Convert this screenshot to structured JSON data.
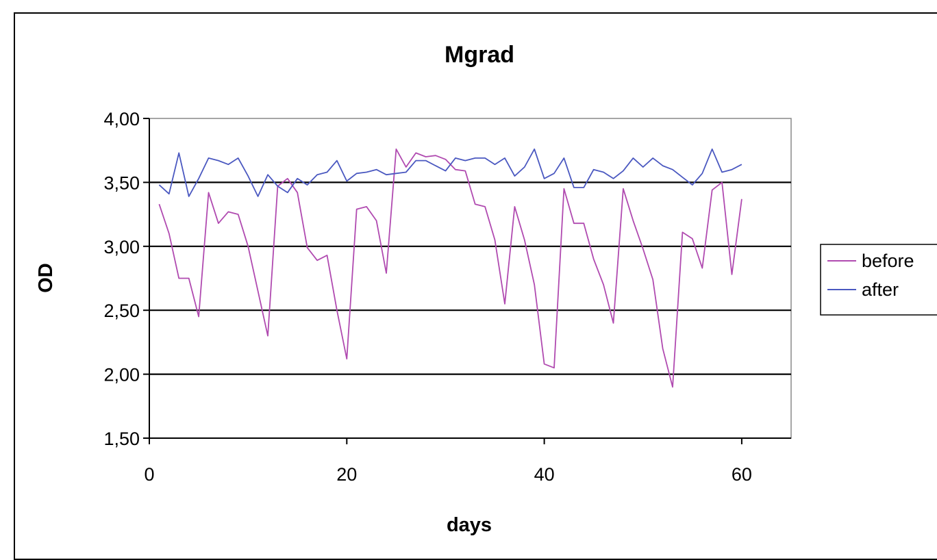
{
  "chart_data": {
    "type": "line",
    "title": "Mgrad",
    "xlabel": "days",
    "ylabel": "OD",
    "xlim": [
      0,
      65
    ],
    "ylim": [
      1.5,
      4.0
    ],
    "x_ticks": [
      0,
      20,
      40,
      60
    ],
    "y_ticks": [
      1.5,
      2.0,
      2.5,
      3.0,
      3.5,
      4.0
    ],
    "x_tick_labels": [
      "0",
      "20",
      "40",
      "60"
    ],
    "y_tick_labels": [
      "1,50",
      "2,00",
      "2,50",
      "3,00",
      "3,50",
      "4,00"
    ],
    "grid": "horizontal major gridlines",
    "legend_position": "right",
    "x": [
      1,
      2,
      3,
      4,
      5,
      6,
      7,
      8,
      9,
      10,
      11,
      12,
      13,
      14,
      15,
      16,
      17,
      18,
      19,
      20,
      21,
      22,
      23,
      24,
      25,
      26,
      27,
      28,
      29,
      30,
      31,
      32,
      33,
      34,
      35,
      36,
      37,
      38,
      39,
      40,
      41,
      42,
      43,
      44,
      45,
      46,
      47,
      48,
      49,
      50,
      51,
      52,
      53,
      54,
      55,
      56,
      57,
      58,
      59,
      60
    ],
    "series": [
      {
        "name": "before",
        "color": "#b04ab0",
        "values": [
          3.33,
          3.1,
          2.75,
          2.75,
          2.45,
          3.42,
          3.18,
          3.27,
          3.25,
          3.0,
          2.65,
          2.3,
          3.47,
          3.53,
          3.42,
          2.99,
          2.89,
          2.93,
          2.5,
          2.12,
          3.29,
          3.31,
          3.2,
          2.79,
          3.76,
          3.62,
          3.73,
          3.7,
          3.71,
          3.68,
          3.6,
          3.59,
          3.33,
          3.31,
          3.05,
          2.55,
          3.31,
          3.05,
          2.7,
          2.08,
          2.05,
          3.45,
          3.18,
          3.18,
          2.9,
          2.7,
          2.4,
          3.45,
          3.2,
          2.98,
          2.74,
          2.2,
          1.9,
          3.11,
          3.06,
          2.83,
          3.44,
          3.5,
          2.78,
          3.37
        ]
      },
      {
        "name": "after",
        "color": "#4a58c0",
        "values": [
          3.48,
          3.41,
          3.73,
          3.39,
          3.53,
          3.69,
          3.67,
          3.64,
          3.69,
          3.55,
          3.39,
          3.56,
          3.47,
          3.42,
          3.53,
          3.48,
          3.56,
          3.58,
          3.67,
          3.51,
          3.57,
          3.58,
          3.6,
          3.56,
          3.57,
          3.58,
          3.67,
          3.67,
          3.63,
          3.59,
          3.69,
          3.67,
          3.69,
          3.69,
          3.64,
          3.69,
          3.55,
          3.62,
          3.76,
          3.53,
          3.57,
          3.69,
          3.46,
          3.46,
          3.6,
          3.58,
          3.53,
          3.59,
          3.69,
          3.62,
          3.69,
          3.63,
          3.6,
          3.54,
          3.48,
          3.57,
          3.76,
          3.58,
          3.6,
          3.64
        ]
      }
    ]
  }
}
